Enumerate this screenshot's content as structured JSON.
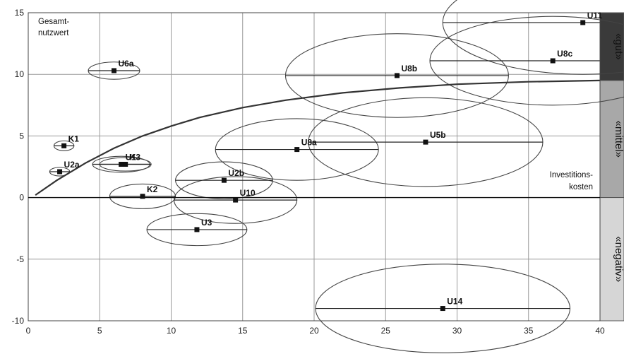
{
  "chart_data": {
    "type": "scatter",
    "title": "",
    "xlabel_lines": [
      "Investitions-",
      "kosten"
    ],
    "ylabel_lines": [
      "Gesamt-",
      "nutzwert"
    ],
    "xlim": [
      0,
      40
    ],
    "ylim": [
      -10,
      15
    ],
    "xticks": [
      0,
      5,
      10,
      15,
      20,
      25,
      30,
      35,
      40
    ],
    "yticks": [
      15,
      10,
      5,
      0,
      -5,
      -10
    ],
    "grid": true,
    "points": [
      {
        "label": "U6a",
        "x": 6.0,
        "y": 10.3,
        "rx": 1.8,
        "ry": 0.7,
        "xmin": 4.2,
        "xmax": 7.8
      },
      {
        "label": "K1",
        "x": 2.5,
        "y": 4.2,
        "rx": 0.7,
        "ry": 0.4,
        "xmin": 1.8,
        "xmax": 3.2
      },
      {
        "label": "U2a",
        "x": 2.2,
        "y": 2.1,
        "rx": 0.7,
        "ry": 0.35,
        "xmin": 1.5,
        "xmax": 2.9
      },
      {
        "label": "U1",
        "x": 6.5,
        "y": 2.7,
        "rx": 2.0,
        "ry": 0.65,
        "xmin": 4.5,
        "xmax": 8.5
      },
      {
        "label": "K3",
        "x": 6.8,
        "y": 2.7,
        "rx": 1.8,
        "ry": 0.55,
        "xmin": 5.0,
        "xmax": 8.6
      },
      {
        "label": "K2",
        "x": 8.0,
        "y": 0.1,
        "rx": 2.3,
        "ry": 1.0,
        "xmin": 5.7,
        "xmax": 10.3
      },
      {
        "label": "U2b",
        "x": 13.7,
        "y": 1.4,
        "rx": 3.4,
        "ry": 1.5,
        "xmin": 10.3,
        "xmax": 17.1
      },
      {
        "label": "U10",
        "x": 14.5,
        "y": -0.2,
        "rx": 4.3,
        "ry": 1.9,
        "xmin": 10.2,
        "xmax": 18.8
      },
      {
        "label": "U3",
        "x": 11.8,
        "y": -2.6,
        "rx": 3.5,
        "ry": 1.3,
        "xmin": 8.3,
        "xmax": 15.3
      },
      {
        "label": "U8a",
        "x": 18.8,
        "y": 3.9,
        "rx": 5.7,
        "ry": 2.5,
        "xmin": 13.1,
        "xmax": 24.5
      },
      {
        "label": "U5b",
        "x": 27.8,
        "y": 4.5,
        "rx": 8.2,
        "ry": 3.6,
        "xmin": 19.6,
        "xmax": 36.0
      },
      {
        "label": "U8b",
        "x": 25.8,
        "y": 9.9,
        "rx": 7.8,
        "ry": 3.4,
        "xmin": 18.0,
        "xmax": 33.6
      },
      {
        "label": "U8c",
        "x": 36.7,
        "y": 11.1,
        "rx": 8.6,
        "ry": 3.6,
        "xmin": 28.1,
        "xmax": 45.3
      },
      {
        "label": "U11",
        "x": 38.8,
        "y": 14.2,
        "rx": 9.8,
        "ry": 4.2,
        "xmin": 29.0,
        "xmax": 48.6
      },
      {
        "label": "U14",
        "x": 29.0,
        "y": -9.0,
        "rx": 8.9,
        "ry": 3.6,
        "xmin": 20.1,
        "xmax": 37.9
      }
    ],
    "bands": [
      {
        "label": "«gut»",
        "from": 9.5,
        "to": 15,
        "color": "#3a3a3a"
      },
      {
        "label": "«mittel»",
        "from": 0,
        "to": 9.5,
        "color": "#a8a8a8"
      },
      {
        "label": "«negativ»",
        "from": -10,
        "to": 0,
        "color": "#d6d6d6"
      }
    ],
    "boundary_curve": [
      [
        0.5,
        0.2
      ],
      [
        2,
        1.4
      ],
      [
        4,
        2.8
      ],
      [
        6,
        4.0
      ],
      [
        8,
        5.0
      ],
      [
        10,
        5.8
      ],
      [
        12,
        6.5
      ],
      [
        15,
        7.3
      ],
      [
        18,
        7.9
      ],
      [
        22,
        8.5
      ],
      [
        26,
        8.9
      ],
      [
        30,
        9.2
      ],
      [
        35,
        9.4
      ],
      [
        40,
        9.5
      ]
    ]
  }
}
